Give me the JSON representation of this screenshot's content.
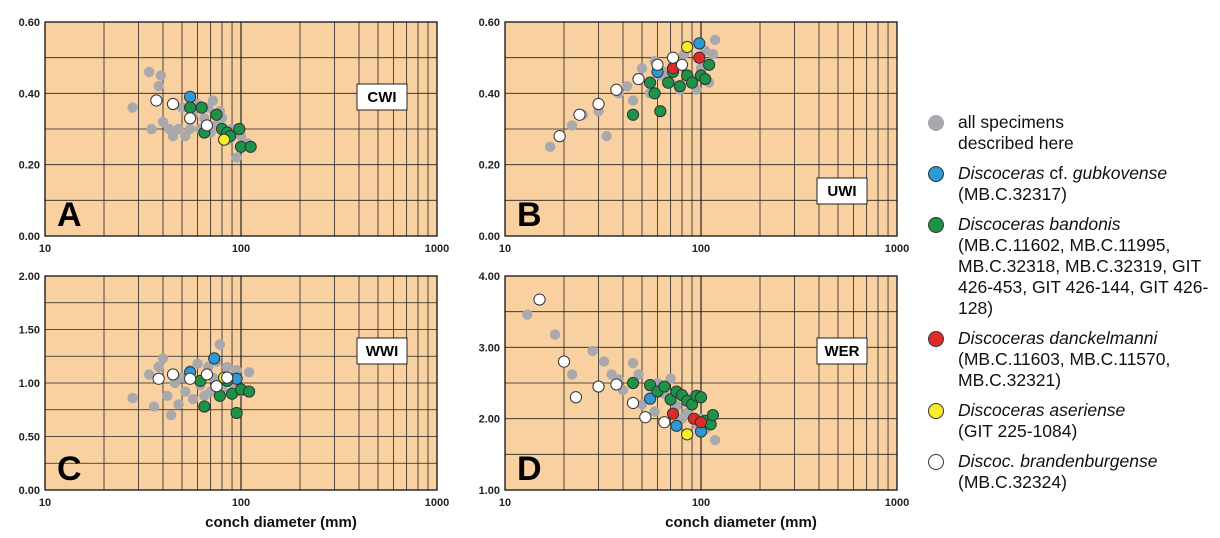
{
  "colors": {
    "plot_bg": "#f9d1a1",
    "grid": "#222222",
    "all": "#a9a9ad",
    "gubkovense": "#2c9ad6",
    "bandonis": "#1c9348",
    "danckelmanni": "#de2b27",
    "aseriense": "#f5ec2a",
    "brandenburgense": "#ffffff"
  },
  "chart_data": [
    {
      "type": "scatter",
      "panel_letter": "A",
      "label": "CWI",
      "xscale": "log",
      "xlim": [
        10,
        1000
      ],
      "ylim": [
        0,
        0.6
      ],
      "xticks": [
        "10",
        "100",
        "1000"
      ],
      "yticks": [
        "0.00",
        "0.20",
        "0.40",
        "0.60"
      ],
      "xlabel": "",
      "series": {
        "all": [
          [
            28,
            0.36
          ],
          [
            34,
            0.46
          ],
          [
            35,
            0.3
          ],
          [
            38,
            0.42
          ],
          [
            39,
            0.45
          ],
          [
            40,
            0.32
          ],
          [
            43,
            0.3
          ],
          [
            45,
            0.28
          ],
          [
            48,
            0.3
          ],
          [
            50,
            0.36
          ],
          [
            52,
            0.28
          ],
          [
            55,
            0.3
          ],
          [
            57,
            0.34
          ],
          [
            60,
            0.37
          ],
          [
            62,
            0.3
          ],
          [
            65,
            0.33
          ],
          [
            68,
            0.36
          ],
          [
            70,
            0.29
          ],
          [
            72,
            0.38
          ],
          [
            75,
            0.31
          ],
          [
            78,
            0.35
          ],
          [
            80,
            0.33
          ],
          [
            82,
            0.29
          ],
          [
            86,
            0.27
          ],
          [
            90,
            0.3
          ],
          [
            95,
            0.22
          ],
          [
            100,
            0.28
          ],
          [
            108,
            0.26
          ]
        ],
        "gubkovense": [
          [
            55,
            0.39
          ]
        ],
        "bandonis": [
          [
            55,
            0.36
          ],
          [
            63,
            0.36
          ],
          [
            65,
            0.29
          ],
          [
            75,
            0.34
          ],
          [
            80,
            0.3
          ],
          [
            85,
            0.29
          ],
          [
            88,
            0.28
          ],
          [
            98,
            0.3
          ],
          [
            100,
            0.25
          ],
          [
            112,
            0.25
          ]
        ],
        "danckelmanni": [],
        "aseriense": [
          [
            82,
            0.27
          ]
        ],
        "brandenburgense": [
          [
            37,
            0.38
          ],
          [
            45,
            0.37
          ],
          [
            55,
            0.33
          ],
          [
            67,
            0.31
          ]
        ]
      }
    },
    {
      "type": "scatter",
      "panel_letter": "B",
      "label": "UWI",
      "xscale": "log",
      "xlim": [
        10,
        1000
      ],
      "ylim": [
        0,
        0.6
      ],
      "xticks": [
        "10",
        "100",
        "1000"
      ],
      "yticks": [
        "0.00",
        "0.20",
        "0.40",
        "0.60"
      ],
      "xlabel": "",
      "series": {
        "all": [
          [
            17,
            0.25
          ],
          [
            22,
            0.31
          ],
          [
            25,
            0.34
          ],
          [
            30,
            0.35
          ],
          [
            33,
            0.28
          ],
          [
            38,
            0.4
          ],
          [
            42,
            0.42
          ],
          [
            45,
            0.38
          ],
          [
            48,
            0.44
          ],
          [
            50,
            0.47
          ],
          [
            55,
            0.4
          ],
          [
            58,
            0.49
          ],
          [
            62,
            0.45
          ],
          [
            65,
            0.46
          ],
          [
            70,
            0.43
          ],
          [
            72,
            0.48
          ],
          [
            78,
            0.41
          ],
          [
            82,
            0.51
          ],
          [
            90,
            0.44
          ],
          [
            95,
            0.41
          ],
          [
            100,
            0.47
          ],
          [
            105,
            0.52
          ],
          [
            110,
            0.43
          ],
          [
            115,
            0.51
          ],
          [
            118,
            0.55
          ]
        ],
        "gubkovense": [
          [
            60,
            0.46
          ],
          [
            98,
            0.54
          ]
        ],
        "bandonis": [
          [
            45,
            0.34
          ],
          [
            55,
            0.43
          ],
          [
            58,
            0.4
          ],
          [
            62,
            0.35
          ],
          [
            68,
            0.43
          ],
          [
            72,
            0.46
          ],
          [
            78,
            0.42
          ],
          [
            85,
            0.45
          ],
          [
            90,
            0.43
          ],
          [
            100,
            0.45
          ],
          [
            105,
            0.44
          ],
          [
            110,
            0.48
          ]
        ],
        "danckelmanni": [
          [
            72,
            0.47
          ],
          [
            98,
            0.5
          ]
        ],
        "aseriense": [
          [
            85,
            0.53
          ]
        ],
        "brandenburgense": [
          [
            19,
            0.28
          ],
          [
            24,
            0.34
          ],
          [
            30,
            0.37
          ],
          [
            37,
            0.41
          ],
          [
            48,
            0.44
          ],
          [
            60,
            0.48
          ],
          [
            72,
            0.5
          ],
          [
            80,
            0.48
          ]
        ]
      }
    },
    {
      "type": "scatter",
      "panel_letter": "C",
      "label": "WWI",
      "xscale": "log",
      "xlim": [
        10,
        1000
      ],
      "ylim": [
        0,
        2
      ],
      "xticks": [
        "10",
        "100",
        "1000"
      ],
      "yticks": [
        "0.00",
        "0.50",
        "1.00",
        "1.50",
        "2.00"
      ],
      "xlabel": "conch diameter (mm)",
      "series": {
        "all": [
          [
            28,
            0.86
          ],
          [
            34,
            1.08
          ],
          [
            36,
            0.78
          ],
          [
            38,
            1.15
          ],
          [
            40,
            1.23
          ],
          [
            42,
            0.88
          ],
          [
            44,
            0.7
          ],
          [
            46,
            1.0
          ],
          [
            48,
            0.8
          ],
          [
            50,
            1.05
          ],
          [
            52,
            0.92
          ],
          [
            55,
            1.12
          ],
          [
            57,
            0.85
          ],
          [
            60,
            1.18
          ],
          [
            62,
            0.98
          ],
          [
            65,
            0.88
          ],
          [
            68,
            1.15
          ],
          [
            70,
            0.92
          ],
          [
            72,
            1.05
          ],
          [
            75,
            1.2
          ],
          [
            78,
            1.36
          ],
          [
            80,
            0.95
          ],
          [
            85,
            1.15
          ],
          [
            90,
            1.0
          ],
          [
            95,
            1.12
          ],
          [
            100,
            0.92
          ],
          [
            110,
            1.1
          ]
        ],
        "gubkovense": [
          [
            55,
            1.1
          ],
          [
            73,
            1.23
          ],
          [
            95,
            1.04
          ]
        ],
        "bandonis": [
          [
            62,
            1.02
          ],
          [
            65,
            0.78
          ],
          [
            78,
            0.88
          ],
          [
            85,
            1.02
          ],
          [
            90,
            0.9
          ],
          [
            100,
            0.94
          ],
          [
            95,
            0.72
          ],
          [
            110,
            0.92
          ]
        ],
        "danckelmanni": [],
        "aseriense": [
          [
            82,
            1.05
          ]
        ],
        "brandenburgense": [
          [
            38,
            1.04
          ],
          [
            45,
            1.08
          ],
          [
            55,
            1.04
          ],
          [
            67,
            1.08
          ],
          [
            75,
            0.97
          ],
          [
            85,
            1.05
          ]
        ]
      }
    },
    {
      "type": "scatter",
      "panel_letter": "D",
      "label": "WER",
      "xscale": "log",
      "xlim": [
        10,
        1000
      ],
      "ylim": [
        1,
        4
      ],
      "xticks": [
        "10",
        "100",
        "1000"
      ],
      "yticks": [
        "1.00",
        "2.00",
        "3.00",
        "4.00"
      ],
      "xlabel": "conch diameter (mm)",
      "series": {
        "all": [
          [
            13,
            3.46
          ],
          [
            18,
            3.18
          ],
          [
            22,
            2.62
          ],
          [
            28,
            2.95
          ],
          [
            32,
            2.8
          ],
          [
            35,
            2.62
          ],
          [
            38,
            2.55
          ],
          [
            40,
            2.4
          ],
          [
            45,
            2.78
          ],
          [
            48,
            2.62
          ],
          [
            50,
            2.2
          ],
          [
            55,
            2.3
          ],
          [
            58,
            2.1
          ],
          [
            60,
            2.5
          ],
          [
            65,
            2.35
          ],
          [
            70,
            2.56
          ],
          [
            75,
            2.18
          ],
          [
            80,
            2.0
          ],
          [
            85,
            2.08
          ],
          [
            90,
            2.3
          ],
          [
            95,
            1.92
          ],
          [
            100,
            2.0
          ],
          [
            105,
            1.85
          ],
          [
            110,
            1.92
          ],
          [
            118,
            1.7
          ]
        ],
        "gubkovense": [
          [
            55,
            2.28
          ],
          [
            75,
            1.9
          ],
          [
            100,
            1.82
          ]
        ],
        "bandonis": [
          [
            45,
            2.5
          ],
          [
            55,
            2.47
          ],
          [
            60,
            2.38
          ],
          [
            65,
            2.45
          ],
          [
            70,
            2.27
          ],
          [
            75,
            2.38
          ],
          [
            80,
            2.33
          ],
          [
            85,
            2.25
          ],
          [
            90,
            2.2
          ],
          [
            95,
            2.32
          ],
          [
            100,
            2.3
          ],
          [
            105,
            1.97
          ],
          [
            112,
            1.92
          ],
          [
            115,
            2.05
          ]
        ],
        "danckelmanni": [
          [
            72,
            2.07
          ],
          [
            92,
            2.0
          ],
          [
            100,
            1.95
          ]
        ],
        "aseriense": [
          [
            85,
            1.78
          ]
        ],
        "brandenburgense": [
          [
            15,
            3.67
          ],
          [
            20,
            2.8
          ],
          [
            23,
            2.3
          ],
          [
            30,
            2.45
          ],
          [
            37,
            2.48
          ],
          [
            45,
            2.22
          ],
          [
            52,
            2.02
          ],
          [
            65,
            1.95
          ]
        ]
      }
    }
  ],
  "legend": [
    {
      "key": "all",
      "name": "all specimens",
      "sub": "described here"
    },
    {
      "key": "gubkovense",
      "name_italic": "Discoceras",
      "name_rest": " cf. gubkovense",
      "rest_italic": true,
      "sub": "(MB.C.32317)"
    },
    {
      "key": "bandonis",
      "name_italic": "Discoceras bandonis",
      "name_rest": "",
      "sub": "(MB.C.11602, MB.C.11995, MB.C.32318, MB.C.32319, GIT 426-453, GIT 426-144, GIT 426-128)"
    },
    {
      "key": "danckelmanni",
      "name_italic": "Discoceras danckelmanni",
      "name_rest": "",
      "sub": "(MB.C.11603, MB.C.11570, MB.C.32321)"
    },
    {
      "key": "aseriense",
      "name_italic": "Discoceras aseriense",
      "name_rest": "",
      "sub": "(GIT 225-1084)"
    },
    {
      "key": "brandenburgense",
      "name_italic": "Discoc. brandenburgense",
      "name_rest": "",
      "sub": "(MB.C.32324)"
    }
  ]
}
